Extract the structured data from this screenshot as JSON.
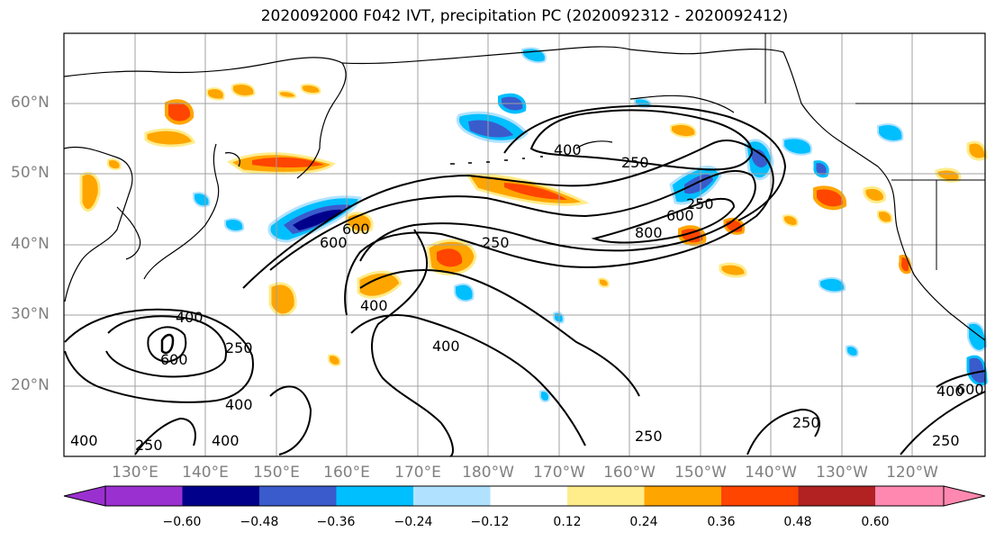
{
  "title": "2020092000 F042 IVT, precipitation PC (2020092312 - 2020092412)",
  "lat_labels": [
    "60°N",
    "50°N",
    "40°N",
    "30°N",
    "20°N"
  ],
  "lon_labels": [
    "130°E",
    "140°E",
    "150°E",
    "160°E",
    "170°E",
    "180°W",
    "170°W",
    "160°W",
    "150°W",
    "140°W",
    "130°W",
    "120°W"
  ],
  "contour_labels": [
    "400",
    "250",
    "600",
    "400",
    "250",
    "400",
    "600",
    "250",
    "400",
    "400",
    "250",
    "800",
    "600",
    "600",
    "400",
    "400",
    "250",
    "250",
    "250",
    "600",
    "400",
    "250"
  ],
  "colorbar": {
    "ticks": [
      "−0.60",
      "−0.48",
      "−0.36",
      "−0.24",
      "−0.12",
      "0.12",
      "0.24",
      "0.36",
      "0.48",
      "0.60"
    ],
    "colors": [
      "#9b30d0",
      "#00008b",
      "#3a5bcc",
      "#00bfff",
      "#b0e2ff",
      "#ffffff",
      "#ffec8b",
      "#ffa500",
      "#ff4500",
      "#b22222",
      "#ff88b0"
    ]
  },
  "precip_colors": {
    "neg_strong": "#00008b",
    "neg_med": "#3a5bcc",
    "neg": "#00bfff",
    "neg_weak": "#b0e2ff",
    "pos_weak": "#ffec8b",
    "pos": "#ffa500",
    "pos_med": "#ff4500",
    "pos_strong": "#b22222"
  }
}
